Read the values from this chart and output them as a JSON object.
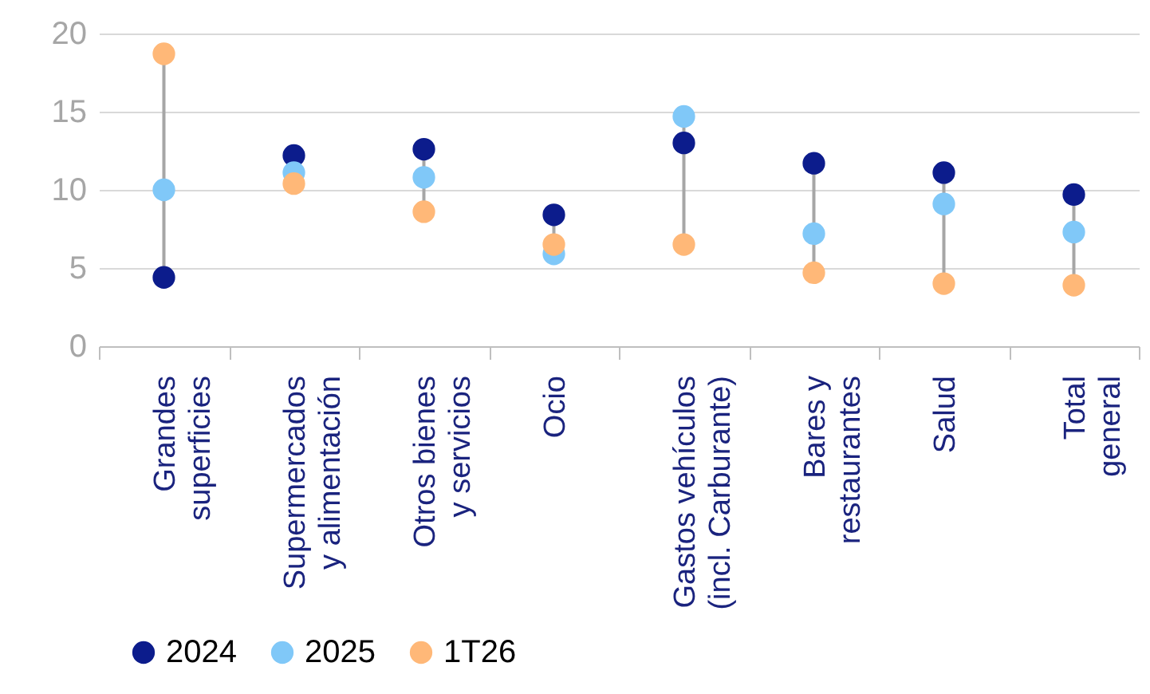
{
  "chart_data": {
    "type": "scatter",
    "categories": [
      "Grandes\nsuperficies",
      "Supermercados\ny alimentación",
      "Otros bienes\ny servicios",
      "Ocio",
      "Gastos vehículos\n(incl. Carburante)",
      "Bares y\nrestaurantes",
      "Salud",
      "Total\ngeneral"
    ],
    "series": [
      {
        "name": "2024",
        "color": "#0c1c8c",
        "values": [
          4.4,
          12.2,
          12.6,
          8.4,
          13.0,
          11.7,
          11.1,
          9.7
        ]
      },
      {
        "name": "2025",
        "color": "#80c8f8",
        "values": [
          10.0,
          11.1,
          10.8,
          5.9,
          14.7,
          7.2,
          9.1,
          7.3
        ]
      },
      {
        "name": "1T26",
        "color": "#ffb878",
        "values": [
          18.7,
          10.4,
          8.6,
          6.5,
          6.5,
          4.7,
          4.0,
          3.9
        ]
      }
    ],
    "ylim": [
      0,
      20
    ],
    "yticks": [
      0,
      5,
      10,
      15,
      20
    ],
    "grid": "y",
    "legend": "bottom left",
    "marker": "circle"
  }
}
